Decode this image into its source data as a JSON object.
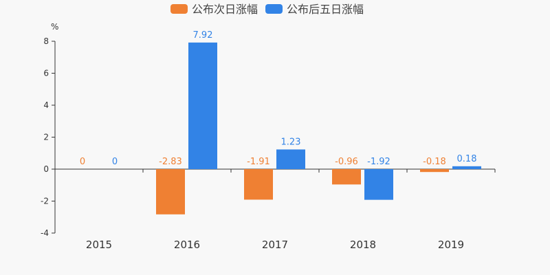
{
  "chart_data": {
    "type": "bar",
    "unit_label": "%",
    "categories": [
      "2015",
      "2016",
      "2017",
      "2018",
      "2019"
    ],
    "series": [
      {
        "name": "公布次日涨幅",
        "color": "#ef8033",
        "values": [
          0,
          -2.83,
          -1.91,
          -0.96,
          -0.18
        ]
      },
      {
        "name": "公布后五日涨幅",
        "color": "#3283e6",
        "values": [
          0,
          7.92,
          1.23,
          -1.92,
          0.18
        ]
      }
    ],
    "ylim": [
      -4,
      8
    ],
    "yticks": [
      -4,
      -2,
      0,
      2,
      4,
      6,
      8
    ],
    "grid": false,
    "legend_position": "top-center",
    "data_labels": true
  }
}
